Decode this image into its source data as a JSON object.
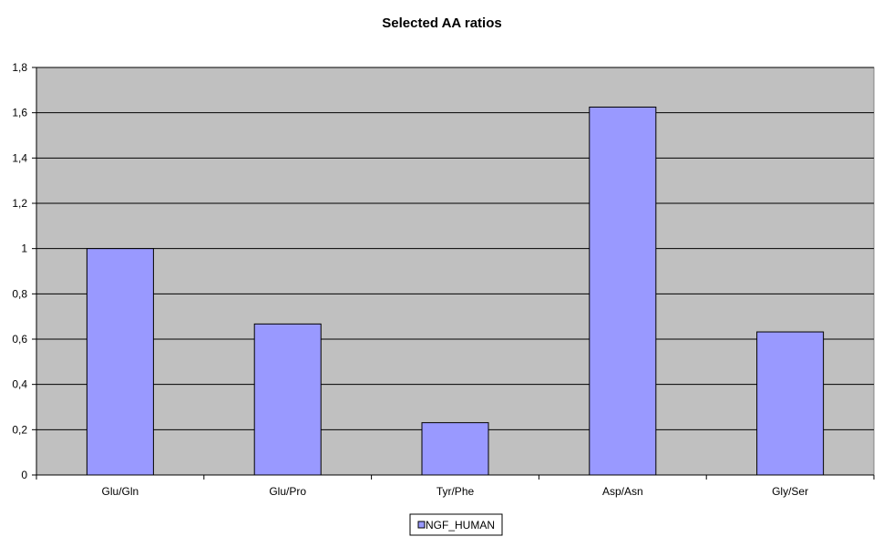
{
  "chart_data": {
    "type": "bar",
    "title": "Selected AA ratios",
    "xlabel": "",
    "ylabel": "",
    "categories": [
      "Glu/Gln",
      "Glu/Pro",
      "Tyr/Phe",
      "Asp/Asn",
      "Gly/Ser"
    ],
    "series": [
      {
        "name": "NGF_HUMAN",
        "values": [
          1.0,
          0.667,
          0.231,
          1.625,
          0.632
        ]
      }
    ],
    "ylim": [
      0,
      1.8
    ],
    "yticks": [
      0,
      0.2,
      0.4,
      0.6,
      0.8,
      1,
      1.2,
      1.4,
      1.6,
      1.8
    ],
    "ytick_labels": [
      "0",
      "0,2",
      "0,4",
      "0,6",
      "0,8",
      "1",
      "1,2",
      "1,4",
      "1,6",
      "1,8"
    ],
    "grid": true,
    "legend_position": "bottom-center",
    "colors": {
      "plot_background": "#c0c0c0",
      "bar_fill": "#9999ff",
      "bar_stroke": "#000000",
      "gridline": "#000000"
    }
  }
}
